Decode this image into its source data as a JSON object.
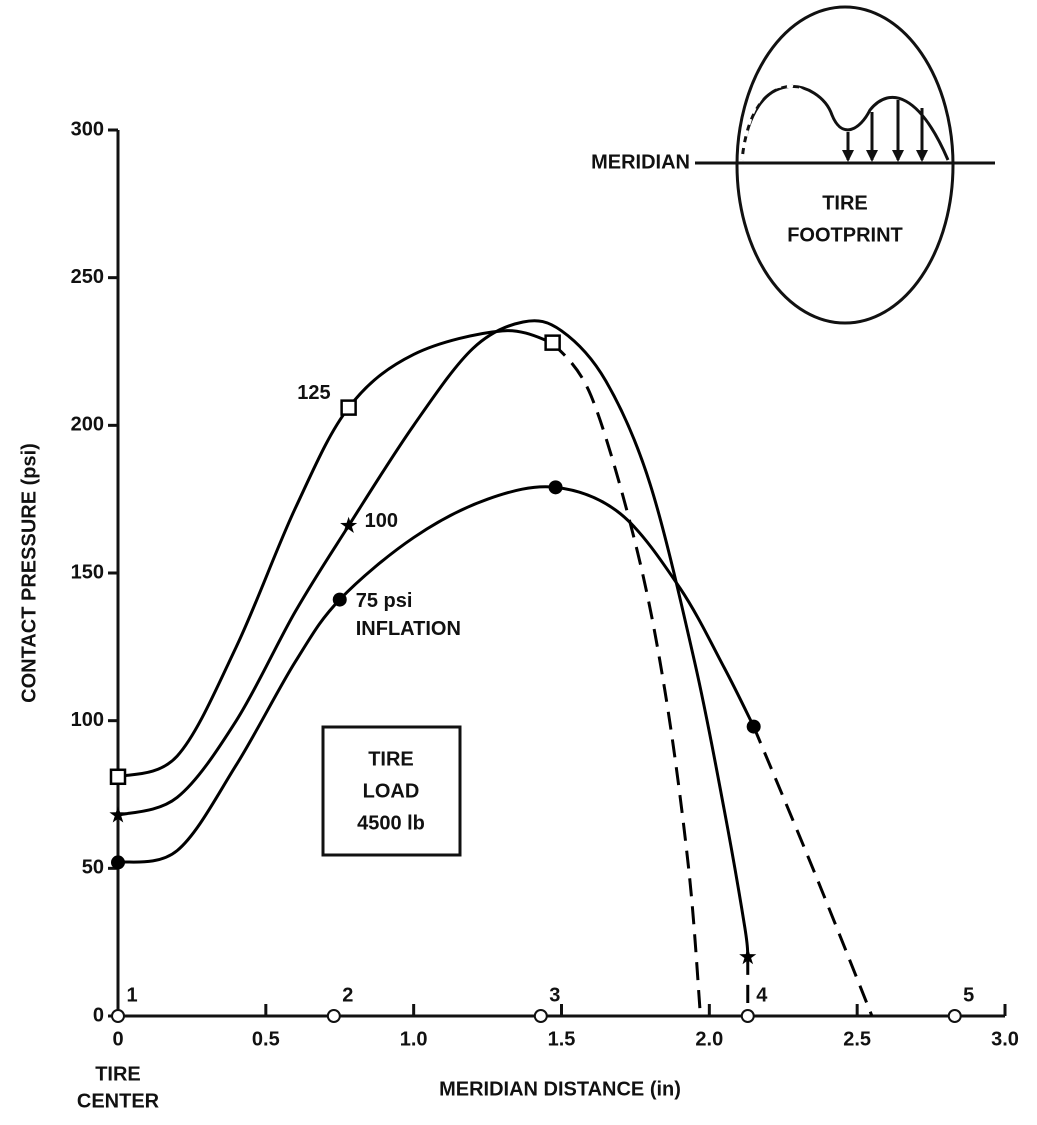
{
  "chart_data": {
    "type": "line",
    "xlabel": "MERIDIAN DISTANCE (in)",
    "ylabel": "CONTACT PRESSURE (psi)",
    "xlim": [
      0,
      3
    ],
    "ylim": [
      0,
      300
    ],
    "xticks": [
      0,
      0.5,
      {
        "value": 1,
        "label": "1.0"
      },
      1.5,
      {
        "value": 2,
        "label": "2.0"
      },
      2.5,
      {
        "value": 3,
        "label": "3.0"
      }
    ],
    "yticks": [
      0,
      50,
      100,
      150,
      200,
      250,
      300
    ],
    "grid": false,
    "series": [
      {
        "name": "125",
        "color": "#000000",
        "marker": "square",
        "x": [
          0,
          0.2,
          0.4,
          0.6,
          0.78,
          1.0,
          1.3,
          1.47,
          1.6,
          1.75,
          1.85,
          1.93,
          1.97
        ],
        "values": [
          81,
          88,
          125,
          172,
          206,
          224,
          232,
          228,
          210,
          160,
          110,
          50,
          0
        ],
        "markers": [
          0,
          4,
          7
        ],
        "dashed_after": 7
      },
      {
        "name": "100",
        "color": "#000000",
        "marker": "star",
        "x": [
          0,
          0.2,
          0.4,
          0.6,
          0.78,
          1.0,
          1.2,
          1.37,
          1.5,
          1.65,
          1.8,
          1.95,
          2.05,
          2.12,
          2.13,
          2.13
        ],
        "values": [
          68,
          74,
          100,
          137,
          166,
          200,
          226,
          235,
          232,
          215,
          180,
          120,
          70,
          30,
          20,
          0
        ],
        "markers": [
          0,
          4,
          14
        ],
        "dashed_after": 14
      },
      {
        "name": "75 psi",
        "color": "#000000",
        "marker": "circle",
        "x": [
          0,
          0.2,
          0.4,
          0.6,
          0.75,
          1.0,
          1.25,
          1.48,
          1.7,
          1.9,
          2.05,
          2.15,
          2.35,
          2.55
        ],
        "values": [
          52,
          56,
          85,
          120,
          141,
          162,
          175,
          179,
          170,
          145,
          118,
          98,
          50,
          0
        ],
        "markers": [
          0,
          4,
          7,
          11
        ],
        "dashed_after": 11
      }
    ],
    "series_note": "INFLATION",
    "meridian_points": {
      "x": [
        0,
        0.73,
        1.43,
        2.13,
        2.83
      ],
      "labels": [
        "1",
        "2",
        "3",
        "4",
        "5"
      ]
    },
    "x_origin_note": [
      "TIRE",
      "CENTER"
    ],
    "load_box": [
      "TIRE",
      "LOAD",
      "4500 lb"
    ],
    "inset": {
      "meridian": "MERIDIAN",
      "footprint": [
        "TIRE",
        "FOOTPRINT"
      ]
    }
  }
}
